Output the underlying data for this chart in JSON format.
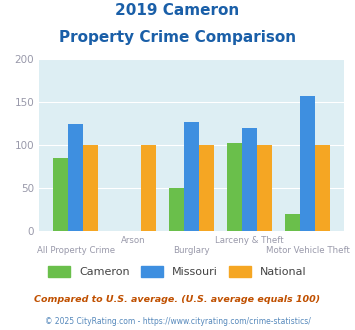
{
  "title_line1": "2019 Cameron",
  "title_line2": "Property Crime Comparison",
  "categories": [
    "All Property Crime",
    "Arson",
    "Burglary",
    "Larceny & Theft",
    "Motor Vehicle Theft"
  ],
  "cameron": [
    85,
    0,
    50,
    103,
    20
  ],
  "missouri": [
    125,
    0,
    127,
    120,
    157
  ],
  "national": [
    100,
    100,
    100,
    100,
    100
  ],
  "cameron_color": "#6abf4b",
  "missouri_color": "#3e8fe0",
  "national_color": "#f5a623",
  "bg_color": "#ddeef3",
  "ylim": [
    0,
    200
  ],
  "yticks": [
    0,
    50,
    100,
    150,
    200
  ],
  "legend_labels": [
    "Cameron",
    "Missouri",
    "National"
  ],
  "footnote1": "Compared to U.S. average. (U.S. average equals 100)",
  "footnote2": "© 2025 CityRating.com - https://www.cityrating.com/crime-statistics/",
  "title_color": "#1a5fa8",
  "footnote1_color": "#c05000",
  "footnote2_color": "#5588bb",
  "label_color": "#9999aa"
}
